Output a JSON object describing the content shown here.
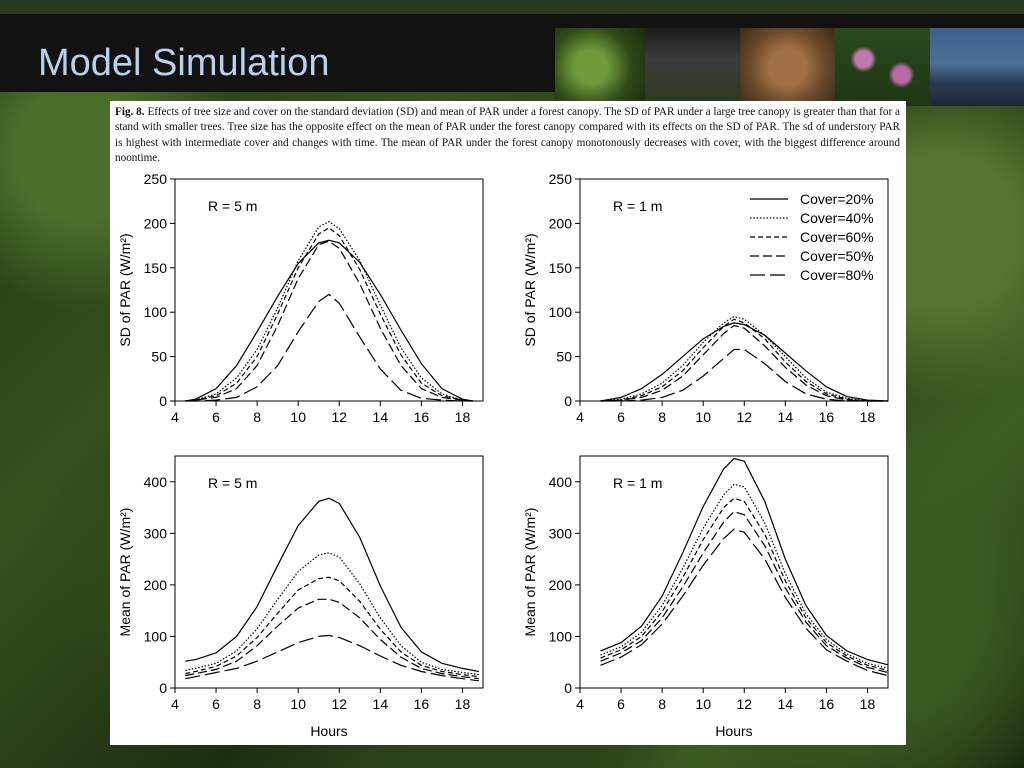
{
  "header": {
    "title": "Model Simulation"
  },
  "caption": {
    "label": "Fig. 8.",
    "text": "Effects of tree size and cover on the standard deviation (SD) and mean of PAR under a forest canopy. The SD of PAR under a large tree canopy is greater than that for a stand with smaller trees. Tree size has the opposite effect on the mean of PAR under the forest canopy compared with its effects on the SD of PAR. The sd of understory PAR is highest with intermediate cover and changes with time. The mean of PAR under the forest canopy monotonously decreases with cover, with the biggest difference around noontime."
  },
  "legend_order": [
    "Cover=20%",
    "Cover=40%",
    "Cover=60%",
    "Cover=50%",
    "Cover=80%"
  ],
  "chart_data": [
    {
      "type": "line",
      "panel_label": "R = 5 m",
      "ylabel": "SD of PAR (W/m²)",
      "xlabel": "",
      "xlim": [
        4,
        19
      ],
      "ylim": [
        0,
        250
      ],
      "xticks": [
        4,
        6,
        8,
        10,
        12,
        14,
        16,
        18
      ],
      "yticks": [
        0,
        50,
        100,
        150,
        200,
        250
      ],
      "x": [
        4.5,
        5,
        6,
        7,
        8,
        9,
        10,
        11,
        11.5,
        12,
        13,
        14,
        15,
        16,
        17,
        18,
        18.5
      ],
      "series": [
        {
          "name": "Cover=20%",
          "dash": "solid",
          "values": [
            0,
            2,
            14,
            40,
            78,
            118,
            155,
            178,
            181,
            178,
            156,
            120,
            80,
            42,
            14,
            2,
            0
          ]
        },
        {
          "name": "Cover=40%",
          "dash": "dotted",
          "values": [
            0,
            1,
            8,
            26,
            58,
            105,
            158,
            196,
            202,
            194,
            158,
            108,
            60,
            26,
            8,
            1,
            0
          ]
        },
        {
          "name": "Cover=60%",
          "dash": "short",
          "values": [
            0,
            1,
            6,
            20,
            50,
            98,
            150,
            188,
            195,
            186,
            148,
            98,
            52,
            20,
            6,
            1,
            0
          ]
        },
        {
          "name": "Cover=50%",
          "dash": "medium",
          "values": [
            0,
            1,
            4,
            14,
            40,
            85,
            138,
            176,
            180,
            172,
            132,
            82,
            40,
            14,
            4,
            1,
            0
          ]
        },
        {
          "name": "Cover=80%",
          "dash": "long",
          "values": [
            0,
            0,
            1,
            4,
            16,
            40,
            78,
            112,
            120,
            110,
            72,
            36,
            12,
            3,
            1,
            0,
            0
          ]
        }
      ]
    },
    {
      "type": "line",
      "panel_label": "R = 1 m",
      "ylabel": "SD of PAR (W/m²)",
      "xlabel": "",
      "xlim": [
        4,
        19
      ],
      "ylim": [
        0,
        250
      ],
      "xticks": [
        4,
        6,
        8,
        10,
        12,
        14,
        16,
        18
      ],
      "yticks": [
        0,
        50,
        100,
        150,
        200,
        250
      ],
      "legend": "top-right",
      "x": [
        5,
        6,
        7,
        8,
        9,
        10,
        11,
        11.5,
        12,
        13,
        14,
        15,
        16,
        17,
        18,
        19
      ],
      "series": [
        {
          "name": "Cover=20%",
          "dash": "solid",
          "values": [
            0,
            4,
            14,
            30,
            50,
            70,
            84,
            88,
            86,
            74,
            54,
            34,
            16,
            5,
            1,
            0
          ]
        },
        {
          "name": "Cover=40%",
          "dash": "dotted",
          "values": [
            0,
            2,
            8,
            20,
            40,
            66,
            88,
            95,
            92,
            74,
            50,
            26,
            10,
            3,
            0,
            0
          ]
        },
        {
          "name": "Cover=60%",
          "dash": "short",
          "values": [
            0,
            1,
            6,
            16,
            34,
            60,
            84,
            92,
            88,
            70,
            44,
            22,
            8,
            2,
            0,
            0
          ]
        },
        {
          "name": "Cover=50%",
          "dash": "medium",
          "values": [
            0,
            1,
            4,
            12,
            28,
            52,
            76,
            85,
            82,
            62,
            38,
            18,
            6,
            1,
            0,
            0
          ]
        },
        {
          "name": "Cover=80%",
          "dash": "long",
          "values": [
            0,
            0,
            1,
            4,
            12,
            28,
            48,
            58,
            58,
            42,
            22,
            8,
            2,
            0,
            0,
            0
          ]
        }
      ]
    },
    {
      "type": "line",
      "panel_label": "R = 5 m",
      "ylabel": "Mean of PAR (W/m²)",
      "xlabel": "Hours",
      "xlim": [
        4,
        19
      ],
      "ylim": [
        0,
        450
      ],
      "xticks": [
        4,
        6,
        8,
        10,
        12,
        14,
        16,
        18
      ],
      "yticks": [
        0,
        100,
        200,
        300,
        400
      ],
      "x": [
        4.5,
        5,
        6,
        7,
        8,
        9,
        10,
        11,
        11.5,
        12,
        13,
        14,
        15,
        16,
        17,
        18,
        18.8
      ],
      "series": [
        {
          "name": "Cover=20%",
          "dash": "solid",
          "values": [
            52,
            55,
            68,
            100,
            158,
            238,
            315,
            362,
            368,
            358,
            292,
            198,
            118,
            70,
            48,
            38,
            32
          ]
        },
        {
          "name": "Cover=40%",
          "dash": "dotted",
          "values": [
            34,
            38,
            48,
            72,
            115,
            172,
            226,
            258,
            262,
            254,
            202,
            136,
            82,
            50,
            36,
            30,
            26
          ]
        },
        {
          "name": "Cover=60%",
          "dash": "short",
          "values": [
            28,
            32,
            42,
            62,
            98,
            145,
            190,
            212,
            215,
            208,
            168,
            114,
            70,
            44,
            32,
            26,
            22
          ]
        },
        {
          "name": "Cover=50%",
          "dash": "medium",
          "values": [
            24,
            28,
            36,
            52,
            82,
            120,
            155,
            172,
            172,
            166,
            136,
            94,
            60,
            38,
            28,
            22,
            18
          ]
        },
        {
          "name": "Cover=80%",
          "dash": "long",
          "values": [
            18,
            22,
            30,
            38,
            52,
            70,
            88,
            100,
            102,
            98,
            82,
            62,
            44,
            32,
            24,
            18,
            14
          ]
        }
      ]
    },
    {
      "type": "line",
      "panel_label": "R = 1 m",
      "ylabel": "Mean of PAR (W/m²)",
      "xlabel": "Hours",
      "xlim": [
        4,
        19
      ],
      "ylim": [
        0,
        450
      ],
      "xticks": [
        4,
        6,
        8,
        10,
        12,
        14,
        16,
        18
      ],
      "yticks": [
        0,
        100,
        200,
        300,
        400
      ],
      "x": [
        5,
        6,
        7,
        8,
        9,
        10,
        11,
        11.5,
        12,
        13,
        14,
        15,
        16,
        17,
        18,
        19
      ],
      "series": [
        {
          "name": "Cover=20%",
          "dash": "solid",
          "values": [
            72,
            88,
            120,
            178,
            262,
            352,
            425,
            445,
            440,
            362,
            250,
            160,
            102,
            72,
            55,
            45
          ]
        },
        {
          "name": "Cover=40%",
          "dash": "dotted",
          "values": [
            64,
            80,
            108,
            160,
            232,
            310,
            375,
            395,
            390,
            320,
            222,
            144,
            94,
            66,
            48,
            38
          ]
        },
        {
          "name": "Cover=60%",
          "dash": "short",
          "values": [
            58,
            74,
            100,
            148,
            214,
            288,
            350,
            368,
            362,
            298,
            208,
            136,
            88,
            62,
            44,
            34
          ]
        },
        {
          "name": "Cover=50%",
          "dash": "medium",
          "values": [
            52,
            68,
            92,
            136,
            196,
            262,
            322,
            342,
            336,
            276,
            194,
            128,
            82,
            58,
            40,
            30
          ]
        },
        {
          "name": "Cover=80%",
          "dash": "long",
          "values": [
            44,
            60,
            84,
            124,
            178,
            238,
            290,
            308,
            302,
            250,
            176,
            116,
            74,
            52,
            34,
            24
          ]
        }
      ]
    }
  ]
}
